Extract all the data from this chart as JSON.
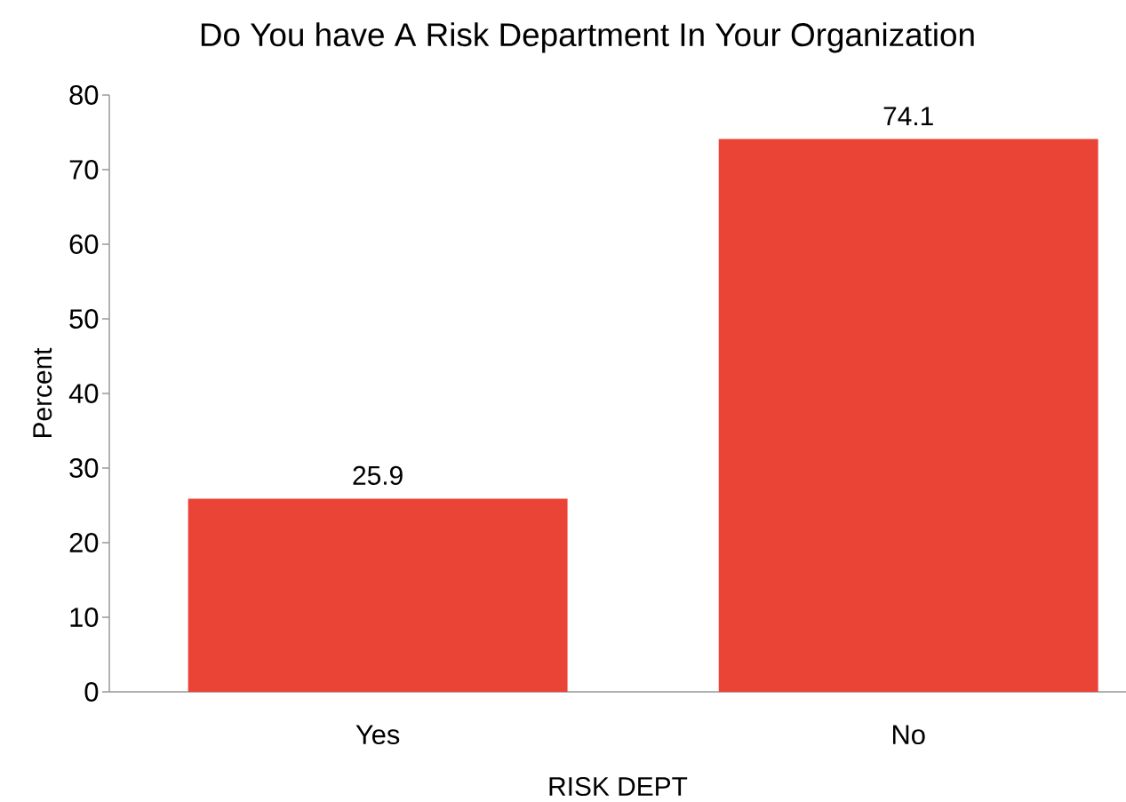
{
  "chart_data": {
    "type": "bar",
    "title": "Do You have A Risk Department In Your Organization",
    "xlabel": "RISK DEPT",
    "ylabel": "Percent",
    "categories": [
      "Yes",
      "No"
    ],
    "values": [
      25.9,
      74.1
    ],
    "color": "#e94436",
    "ylim": [
      0,
      80
    ],
    "yticks": [
      0,
      10,
      20,
      30,
      40,
      50,
      60,
      70,
      80
    ],
    "data_labels": true,
    "grid": false
  }
}
